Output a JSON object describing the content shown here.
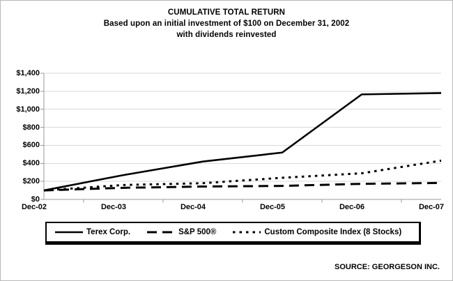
{
  "title": {
    "line1": "CUMULATIVE TOTAL RETURN",
    "line2": "Based upon an initial investment of $100 on December 31, 2002",
    "line3": "with dividends reinvested"
  },
  "source": "SOURCE: GEORGESON INC.",
  "chart_data": {
    "type": "line",
    "categories": [
      "Dec-02",
      "Dec-03",
      "Dec-04",
      "Dec-05",
      "Dec-06",
      "Dec-07"
    ],
    "series": [
      {
        "name": "Terex Corp.",
        "style": "solid",
        "values": [
          100,
          270,
          420,
          520,
          1165,
          1180
        ]
      },
      {
        "name": "S&P 500®",
        "style": "dashed",
        "values": [
          100,
          129,
          143,
          150,
          173,
          183
        ]
      },
      {
        "name": "Custom Composite Index (8 Stocks)",
        "style": "dotted",
        "values": [
          100,
          160,
          180,
          240,
          290,
          430
        ]
      }
    ],
    "ylabel_ticks": [
      "$0",
      "$200",
      "$400",
      "$600",
      "$800",
      "$1,000",
      "$1,200",
      "$1,400"
    ],
    "ylim": [
      0,
      1400
    ],
    "ytick_step": 200,
    "grid": "horizontal",
    "legend_position": "bottom",
    "colors": {
      "series": "#000000",
      "grid": "#d9d9d9",
      "axis": "#999999",
      "text": "#000000",
      "background": "#ffffff"
    }
  }
}
